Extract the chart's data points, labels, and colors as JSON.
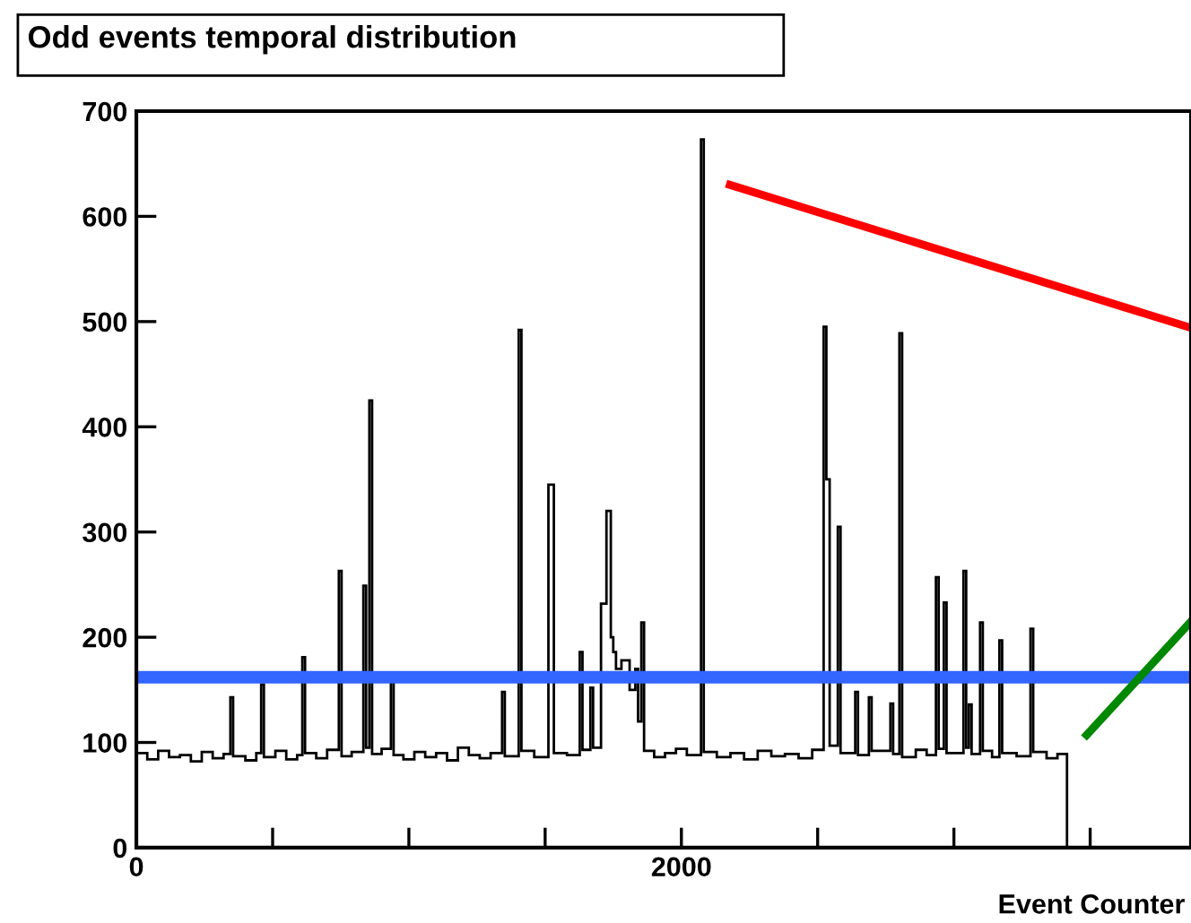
{
  "chart_data": {
    "type": "histogram",
    "title": "Odd events temporal distribution",
    "xlabel": "Event Counter",
    "bins": [
      0,
      40,
      80,
      120,
      160,
      200,
      240,
      280,
      320,
      345,
      355,
      400,
      440,
      458,
      468,
      510,
      550,
      590,
      609,
      619,
      660,
      700,
      743,
      753,
      790,
      833,
      843,
      855,
      865,
      900,
      934,
      944,
      980,
      1020,
      1060,
      1100,
      1140,
      1180,
      1220,
      1260,
      1300,
      1342,
      1352,
      1403,
      1413,
      1460,
      1512,
      1532,
      1580,
      1627,
      1637,
      1666,
      1676,
      1705,
      1725,
      1741,
      1750,
      1760,
      1780,
      1810,
      1831,
      1841,
      1853,
      1863,
      1900,
      1940,
      1980,
      2020,
      2072,
      2082,
      2130,
      2180,
      2230,
      2280,
      2330,
      2380,
      2430,
      2480,
      2522,
      2532,
      2544,
      2574,
      2584,
      2638,
      2648,
      2688,
      2698,
      2767,
      2777,
      2800,
      2810,
      2860,
      2900,
      2934,
      2944,
      2963,
      2973,
      3035,
      3045,
      3055,
      3065,
      3096,
      3106,
      3140,
      3167,
      3177,
      3230,
      3281,
      3291,
      3340,
      3380,
      3415
    ],
    "values": [
      90,
      84,
      92,
      86,
      88,
      82,
      91,
      85,
      89,
      143,
      87,
      83,
      90,
      155,
      86,
      92,
      84,
      88,
      181,
      90,
      85,
      93,
      263,
      87,
      91,
      249,
      95,
      425,
      89,
      94,
      158,
      88,
      84,
      91,
      86,
      90,
      83,
      95,
      88,
      85,
      90,
      148,
      87,
      492,
      92,
      86,
      345,
      90,
      88,
      186,
      93,
      152,
      95,
      232,
      320,
      200,
      186,
      170,
      178,
      150,
      170,
      120,
      214,
      92,
      86,
      90,
      94,
      88,
      673,
      91,
      86,
      90,
      84,
      92,
      87,
      89,
      85,
      93,
      495,
      350,
      97,
      305,
      90,
      148,
      88,
      143,
      92,
      137,
      89,
      489,
      86,
      93,
      88,
      257,
      94,
      233,
      90,
      263,
      95,
      136,
      89,
      214,
      92,
      86,
      197,
      90,
      87,
      208,
      91,
      85,
      89
    ],
    "color": "#000000",
    "series": [
      {
        "type": "line",
        "color": "#ff0000",
        "x": [
          2178,
          3870
        ],
        "values": [
          630,
          494
        ]
      },
      {
        "type": "line",
        "color": "#008800",
        "x": [
          3487,
          3870
        ],
        "values": [
          107,
          215
        ]
      }
    ],
    "xlim": [
      0,
      3870
    ],
    "xticks": [
      0,
      {
        "value": 500,
        "label": null
      },
      {
        "value": 1000,
        "label": null
      },
      {
        "value": 1500,
        "label": null
      },
      2000,
      {
        "value": 2500,
        "label": null
      },
      {
        "value": 3000,
        "label": null
      },
      {
        "value": 3500,
        "label": null
      }
    ],
    "ylim": [
      0,
      700
    ],
    "yticks": [
      0,
      100,
      200,
      300,
      400,
      500,
      600,
      700
    ],
    "ref_lines": [
      {
        "axis": "y",
        "value": 162,
        "color": "#3366ff",
        "line_style": "solid"
      }
    ],
    "grid": false
  }
}
